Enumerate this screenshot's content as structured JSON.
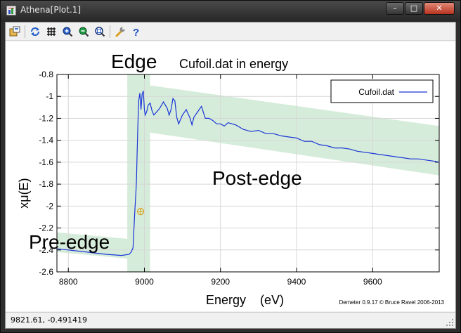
{
  "window": {
    "title": "Athena[Plot.1]",
    "minimize_label": "–",
    "maximize_label": "□",
    "close_label": "✕"
  },
  "toolbar": {
    "buttons": [
      {
        "name": "save-icon",
        "tooltip": ""
      },
      {
        "name": "refresh-icon"
      },
      {
        "name": "grid-icon"
      },
      {
        "name": "zoom-in-icon"
      },
      {
        "name": "zoom-out-icon"
      },
      {
        "name": "zoom-reset-icon"
      },
      {
        "name": "wrench-icon"
      },
      {
        "name": "help-icon"
      }
    ]
  },
  "plot": {
    "title": "Cufoil.dat in energy",
    "region_labels": {
      "edge": "Edge",
      "pre_edge": "Pre-edge",
      "post_edge": "Post-edge"
    },
    "footer": "Demeter 0.9.17 © Bruce Ravel 2006-2013",
    "colors": {
      "curve": "#1a35d8",
      "bands": "#d6ecda",
      "marker": "#d9a21a"
    }
  },
  "chart_data": {
    "type": "line",
    "title": "Cufoil.dat in energy",
    "xlabel": "Energy    (eV)",
    "ylabel": "xμ(E)",
    "xlim": [
      8770,
      9775
    ],
    "ylim": [
      -2.6,
      -0.8
    ],
    "xticks": [
      "8800",
      "9000",
      "9200",
      "9400",
      "9600"
    ],
    "yticks": [
      "-0.8",
      "-1",
      "-1.2",
      "-1.4",
      "-1.6",
      "-1.8",
      "-2",
      "-2.2",
      "-2.4",
      "-2.6"
    ],
    "legend": {
      "placement": "top-right",
      "entries": [
        "Cufoil.dat"
      ]
    },
    "grid": true,
    "series": [
      {
        "name": "Cufoil.dat",
        "x": [
          8770,
          8800,
          8850,
          8900,
          8940,
          8960,
          8965,
          8970,
          8974,
          8978,
          8979,
          8981,
          8983,
          8985,
          8988,
          8991,
          8994,
          8997,
          9000,
          9002,
          9006,
          9010,
          9015,
          9020,
          9025,
          9030,
          9040,
          9050,
          9060,
          9065,
          9070,
          9075,
          9080,
          9085,
          9090,
          9100,
          9110,
          9120,
          9125,
          9130,
          9140,
          9150,
          9160,
          9170,
          9180,
          9190,
          9200,
          9210,
          9220,
          9240,
          9260,
          9280,
          9300,
          9320,
          9340,
          9360,
          9380,
          9400,
          9420,
          9440,
          9460,
          9480,
          9500,
          9520,
          9540,
          9560,
          9580,
          9600,
          9620,
          9640,
          9660,
          9680,
          9700,
          9720,
          9740,
          9760,
          9775
        ],
        "y": [
          -2.39,
          -2.4,
          -2.42,
          -2.44,
          -2.45,
          -2.44,
          -2.42,
          -2.38,
          -2.1,
          -1.85,
          -1.78,
          -1.5,
          -1.24,
          -1.04,
          -0.97,
          -1.12,
          -0.98,
          -0.95,
          -1.12,
          -1.17,
          -1.14,
          -1.08,
          -1.06,
          -1.13,
          -1.17,
          -1.15,
          -1.11,
          -1.05,
          -1.11,
          -1.17,
          -1.12,
          -1.02,
          -1.04,
          -1.19,
          -1.25,
          -1.17,
          -1.12,
          -1.2,
          -1.26,
          -1.19,
          -1.14,
          -1.09,
          -1.2,
          -1.2,
          -1.22,
          -1.25,
          -1.25,
          -1.27,
          -1.24,
          -1.26,
          -1.3,
          -1.32,
          -1.31,
          -1.34,
          -1.34,
          -1.36,
          -1.37,
          -1.38,
          -1.41,
          -1.41,
          -1.44,
          -1.45,
          -1.47,
          -1.47,
          -1.48,
          -1.5,
          -1.51,
          -1.52,
          -1.53,
          -1.54,
          -1.55,
          -1.56,
          -1.57,
          -1.57,
          -1.58,
          -1.59,
          -1.6
        ]
      }
    ],
    "annotations": [
      {
        "type": "marker",
        "x": 8990,
        "y": -2.05
      }
    ]
  },
  "status": {
    "text": "9821.61, -0.491419"
  }
}
